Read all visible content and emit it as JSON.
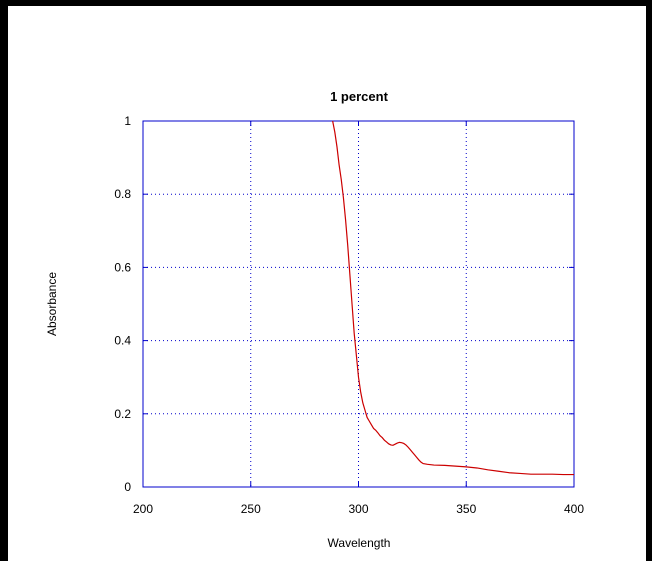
{
  "chart_data": {
    "type": "line",
    "title": "1 percent",
    "xlabel": "Wavelength",
    "ylabel": "Absorbance",
    "xlim": [
      200,
      400
    ],
    "ylim": [
      0,
      1
    ],
    "x_ticks": [
      200,
      250,
      300,
      350,
      400
    ],
    "y_ticks": [
      0,
      0.2,
      0.4,
      0.6,
      0.8,
      1
    ],
    "x_tick_labels": [
      "200",
      "250",
      "300",
      "350",
      "400"
    ],
    "y_tick_labels": [
      "0",
      "0.2",
      "0.4",
      "0.6",
      "0.8",
      "1"
    ],
    "grid": true,
    "legend": "none",
    "series": [
      {
        "color": "#cc0000",
        "points": [
          [
            288,
            1.0
          ],
          [
            289,
            0.97
          ],
          [
            290,
            0.93
          ],
          [
            291,
            0.88
          ],
          [
            292,
            0.84
          ],
          [
            293,
            0.79
          ],
          [
            294,
            0.73
          ],
          [
            295,
            0.66
          ],
          [
            296,
            0.58
          ],
          [
            297,
            0.5
          ],
          [
            298,
            0.42
          ],
          [
            299,
            0.36
          ],
          [
            300,
            0.3
          ],
          [
            301,
            0.26
          ],
          [
            302,
            0.23
          ],
          [
            303,
            0.21
          ],
          [
            304,
            0.19
          ],
          [
            305,
            0.18
          ],
          [
            306,
            0.17
          ],
          [
            307,
            0.16
          ],
          [
            308,
            0.155
          ],
          [
            309,
            0.148
          ],
          [
            310,
            0.14
          ],
          [
            311,
            0.135
          ],
          [
            312,
            0.128
          ],
          [
            313,
            0.123
          ],
          [
            314,
            0.118
          ],
          [
            315,
            0.115
          ],
          [
            316,
            0.114
          ],
          [
            317,
            0.117
          ],
          [
            318,
            0.12
          ],
          [
            319,
            0.122
          ],
          [
            320,
            0.121
          ],
          [
            321,
            0.119
          ],
          [
            322,
            0.115
          ],
          [
            323,
            0.109
          ],
          [
            324,
            0.102
          ],
          [
            325,
            0.095
          ],
          [
            326,
            0.088
          ],
          [
            327,
            0.081
          ],
          [
            328,
            0.074
          ],
          [
            329,
            0.068
          ],
          [
            330,
            0.064
          ],
          [
            332,
            0.062
          ],
          [
            335,
            0.06
          ],
          [
            340,
            0.059
          ],
          [
            345,
            0.057
          ],
          [
            350,
            0.055
          ],
          [
            355,
            0.052
          ],
          [
            360,
            0.047
          ],
          [
            365,
            0.043
          ],
          [
            370,
            0.039
          ],
          [
            375,
            0.037
          ],
          [
            380,
            0.035
          ],
          [
            385,
            0.035
          ],
          [
            390,
            0.035
          ],
          [
            395,
            0.034
          ],
          [
            400,
            0.034
          ]
        ]
      }
    ]
  },
  "style": {
    "frame_color": "#000000",
    "axis_color": "#0000cc",
    "grid_color": "#0000cc",
    "line_color": "#cc0000"
  }
}
